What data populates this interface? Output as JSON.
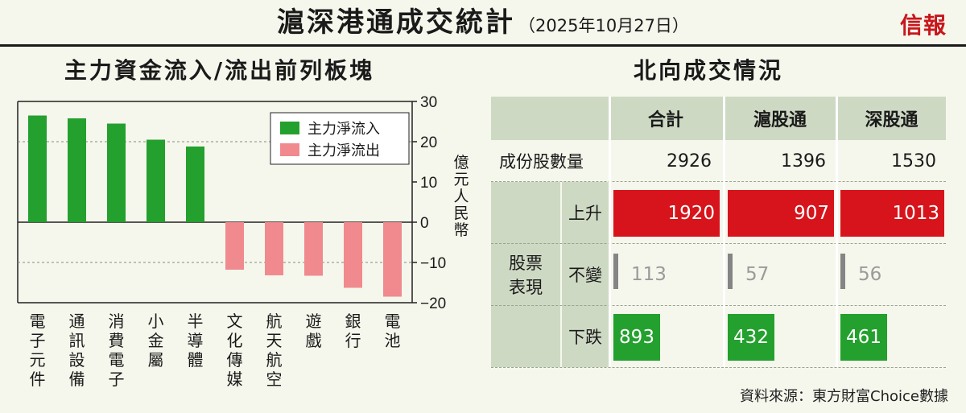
{
  "header": {
    "title": "滬深港通成交統計",
    "date": "（2025年10月27日）",
    "logo": "信報"
  },
  "left_panel": {
    "title": "主力資金流入/流出前列板塊"
  },
  "right_panel": {
    "title": "北向成交情況"
  },
  "source": "資料來源：東方財富Choice數據",
  "colors": {
    "inflow": "#23a02d",
    "outflow": "#f08a8e",
    "up": "#d7141b",
    "down": "#23a02d",
    "flat": "#858585"
  },
  "chart_data": {
    "type": "bar",
    "title": "主力資金流入/流出前列板塊",
    "ylabel": "億元人民幣",
    "ylim": [
      -20,
      30
    ],
    "yticks": [
      30,
      20,
      10,
      0,
      -10,
      -20
    ],
    "grid": "dashed at 20, -10",
    "legend_position": "top-right",
    "categories": [
      "電子元件",
      "通訊設備",
      "消費電子",
      "小金屬",
      "半導體",
      "文化傳媒",
      "航天航空",
      "遊戲",
      "銀行",
      "電池"
    ],
    "series": [
      {
        "name": "主力淨流入",
        "color": "#23a02d",
        "values": [
          26.5,
          25.8,
          24.5,
          20.5,
          18.8,
          null,
          null,
          null,
          null,
          null
        ]
      },
      {
        "name": "主力淨流出",
        "color": "#f08a8e",
        "values": [
          null,
          null,
          null,
          null,
          null,
          -11.8,
          -13.2,
          -13.3,
          -16.3,
          -18.5
        ]
      }
    ]
  },
  "table": {
    "columns": [
      "合計",
      "滬股通",
      "深股通"
    ],
    "constituents_label": "成份股數量",
    "constituents": [
      "2926",
      "1396",
      "1530"
    ],
    "group_label_1": "股票",
    "group_label_2": "表現",
    "rows": [
      {
        "label": "上升",
        "values": [
          "1920",
          "907",
          "1013"
        ],
        "kind": "up"
      },
      {
        "label": "不變",
        "values": [
          "113",
          "57",
          "56"
        ],
        "kind": "flat"
      },
      {
        "label": "下跌",
        "values": [
          "893",
          "432",
          "461"
        ],
        "kind": "down"
      }
    ],
    "bar_max": 1920
  }
}
